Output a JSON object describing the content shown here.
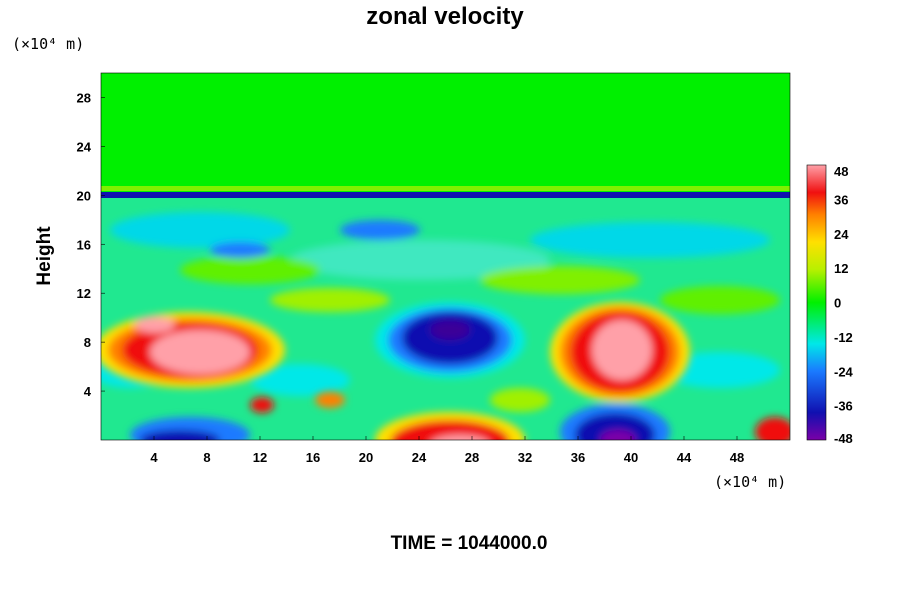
{
  "chart_data": {
    "type": "heatmap",
    "title": "zonal velocity",
    "ylabel": "Height",
    "x_unit": "(×10⁴ m)",
    "y_unit": "(×10⁴ m)",
    "xlim": [
      0,
      52
    ],
    "ylim": [
      0,
      30
    ],
    "x_ticks": [
      4,
      8,
      12,
      16,
      20,
      24,
      28,
      32,
      36,
      40,
      44,
      48
    ],
    "y_ticks": [
      4,
      8,
      12,
      16,
      20,
      24,
      28
    ],
    "colorbar": {
      "min": -48,
      "max": 48,
      "ticks": [
        48,
        36,
        24,
        12,
        0,
        -12,
        -24,
        -36,
        -48
      ]
    },
    "features": [
      {
        "x": 7,
        "y": 7.5,
        "value": 48
      },
      {
        "x": 38,
        "y": 7.5,
        "value": 48
      },
      {
        "x": 27,
        "y": 8.5,
        "value": -44
      },
      {
        "x": 38,
        "y": 1,
        "value": -48
      },
      {
        "x": 28,
        "y": 0.5,
        "value": 40
      },
      {
        "x": 7,
        "y": 0.5,
        "value": -38
      },
      {
        "x": 51,
        "y": 0.5,
        "value": 40
      },
      {
        "x": 12,
        "y": 2.5,
        "value": 30
      }
    ],
    "grid": false,
    "legend": "right"
  },
  "caption": "TIME = 1044000.0"
}
